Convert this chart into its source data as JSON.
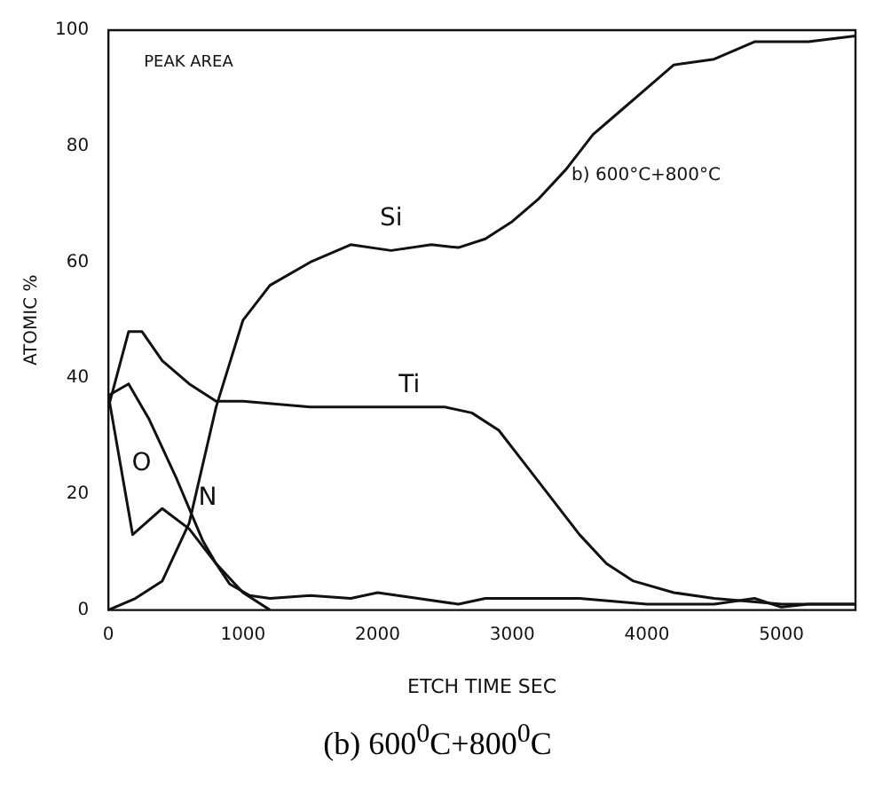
{
  "chart_data": {
    "type": "line",
    "title": "(b) 600$^{0}$C+800$^{0}$C",
    "xlabel": "ETCH TIME SEC",
    "ylabel": "ATOMIC %",
    "xlim": [
      0,
      5550
    ],
    "xticks": [
      0,
      1000,
      2000,
      3000,
      4000,
      5000
    ],
    "ylim": [
      0,
      100
    ],
    "yticks": [
      0,
      20,
      40,
      60,
      80,
      100
    ],
    "grid": false,
    "legend": false,
    "marker": "none",
    "line_style": "solid",
    "series": [
      {
        "name": "Si",
        "color": "#111111",
        "x": [
          0,
          200,
          400,
          600,
          800,
          1000,
          1200,
          1500,
          1800,
          2100,
          2400,
          2600,
          2800,
          3000,
          3200,
          3400,
          3600,
          3800,
          4000,
          4200,
          4500,
          4800,
          5200,
          5550
        ],
        "values": [
          0,
          2,
          5,
          15,
          35,
          50,
          56,
          60,
          63,
          62,
          63,
          62.5,
          64,
          67,
          71,
          76,
          82,
          86,
          90,
          94,
          95,
          98,
          98,
          99
        ]
      },
      {
        "name": "Ti",
        "color": "#111111",
        "x": [
          0,
          150,
          250,
          400,
          600,
          800,
          1000,
          1500,
          2000,
          2500,
          2700,
          2900,
          3100,
          3300,
          3500,
          3700,
          3900,
          4200,
          4500,
          5000,
          5550
        ],
        "values": [
          35,
          48,
          48,
          43,
          39,
          36,
          36,
          35,
          35,
          35,
          34,
          31,
          25,
          19,
          13,
          8,
          5,
          3,
          2,
          1,
          1
        ]
      },
      {
        "name": "O",
        "color": "#111111",
        "x": [
          0,
          180,
          400,
          600,
          800,
          900,
          1050,
          1200,
          1500,
          1800,
          2000,
          2300,
          2600,
          2800,
          3000,
          3500,
          4000,
          4500,
          4800,
          5000,
          5200,
          5550
        ],
        "values": [
          37,
          13,
          17.5,
          14,
          8,
          4.5,
          2.5,
          2,
          2.5,
          2,
          3,
          2,
          1,
          2,
          2,
          2,
          1,
          1,
          2,
          0.5,
          1,
          1
        ]
      },
      {
        "name": "N",
        "color": "#111111",
        "x": [
          0,
          150,
          300,
          500,
          700,
          800,
          1000,
          1200
        ],
        "values": [
          37,
          39,
          33,
          23,
          12,
          8,
          3,
          0
        ]
      }
    ],
    "annotations": [
      "PEAK AREA",
      "b) 600°C+800°C"
    ]
  }
}
